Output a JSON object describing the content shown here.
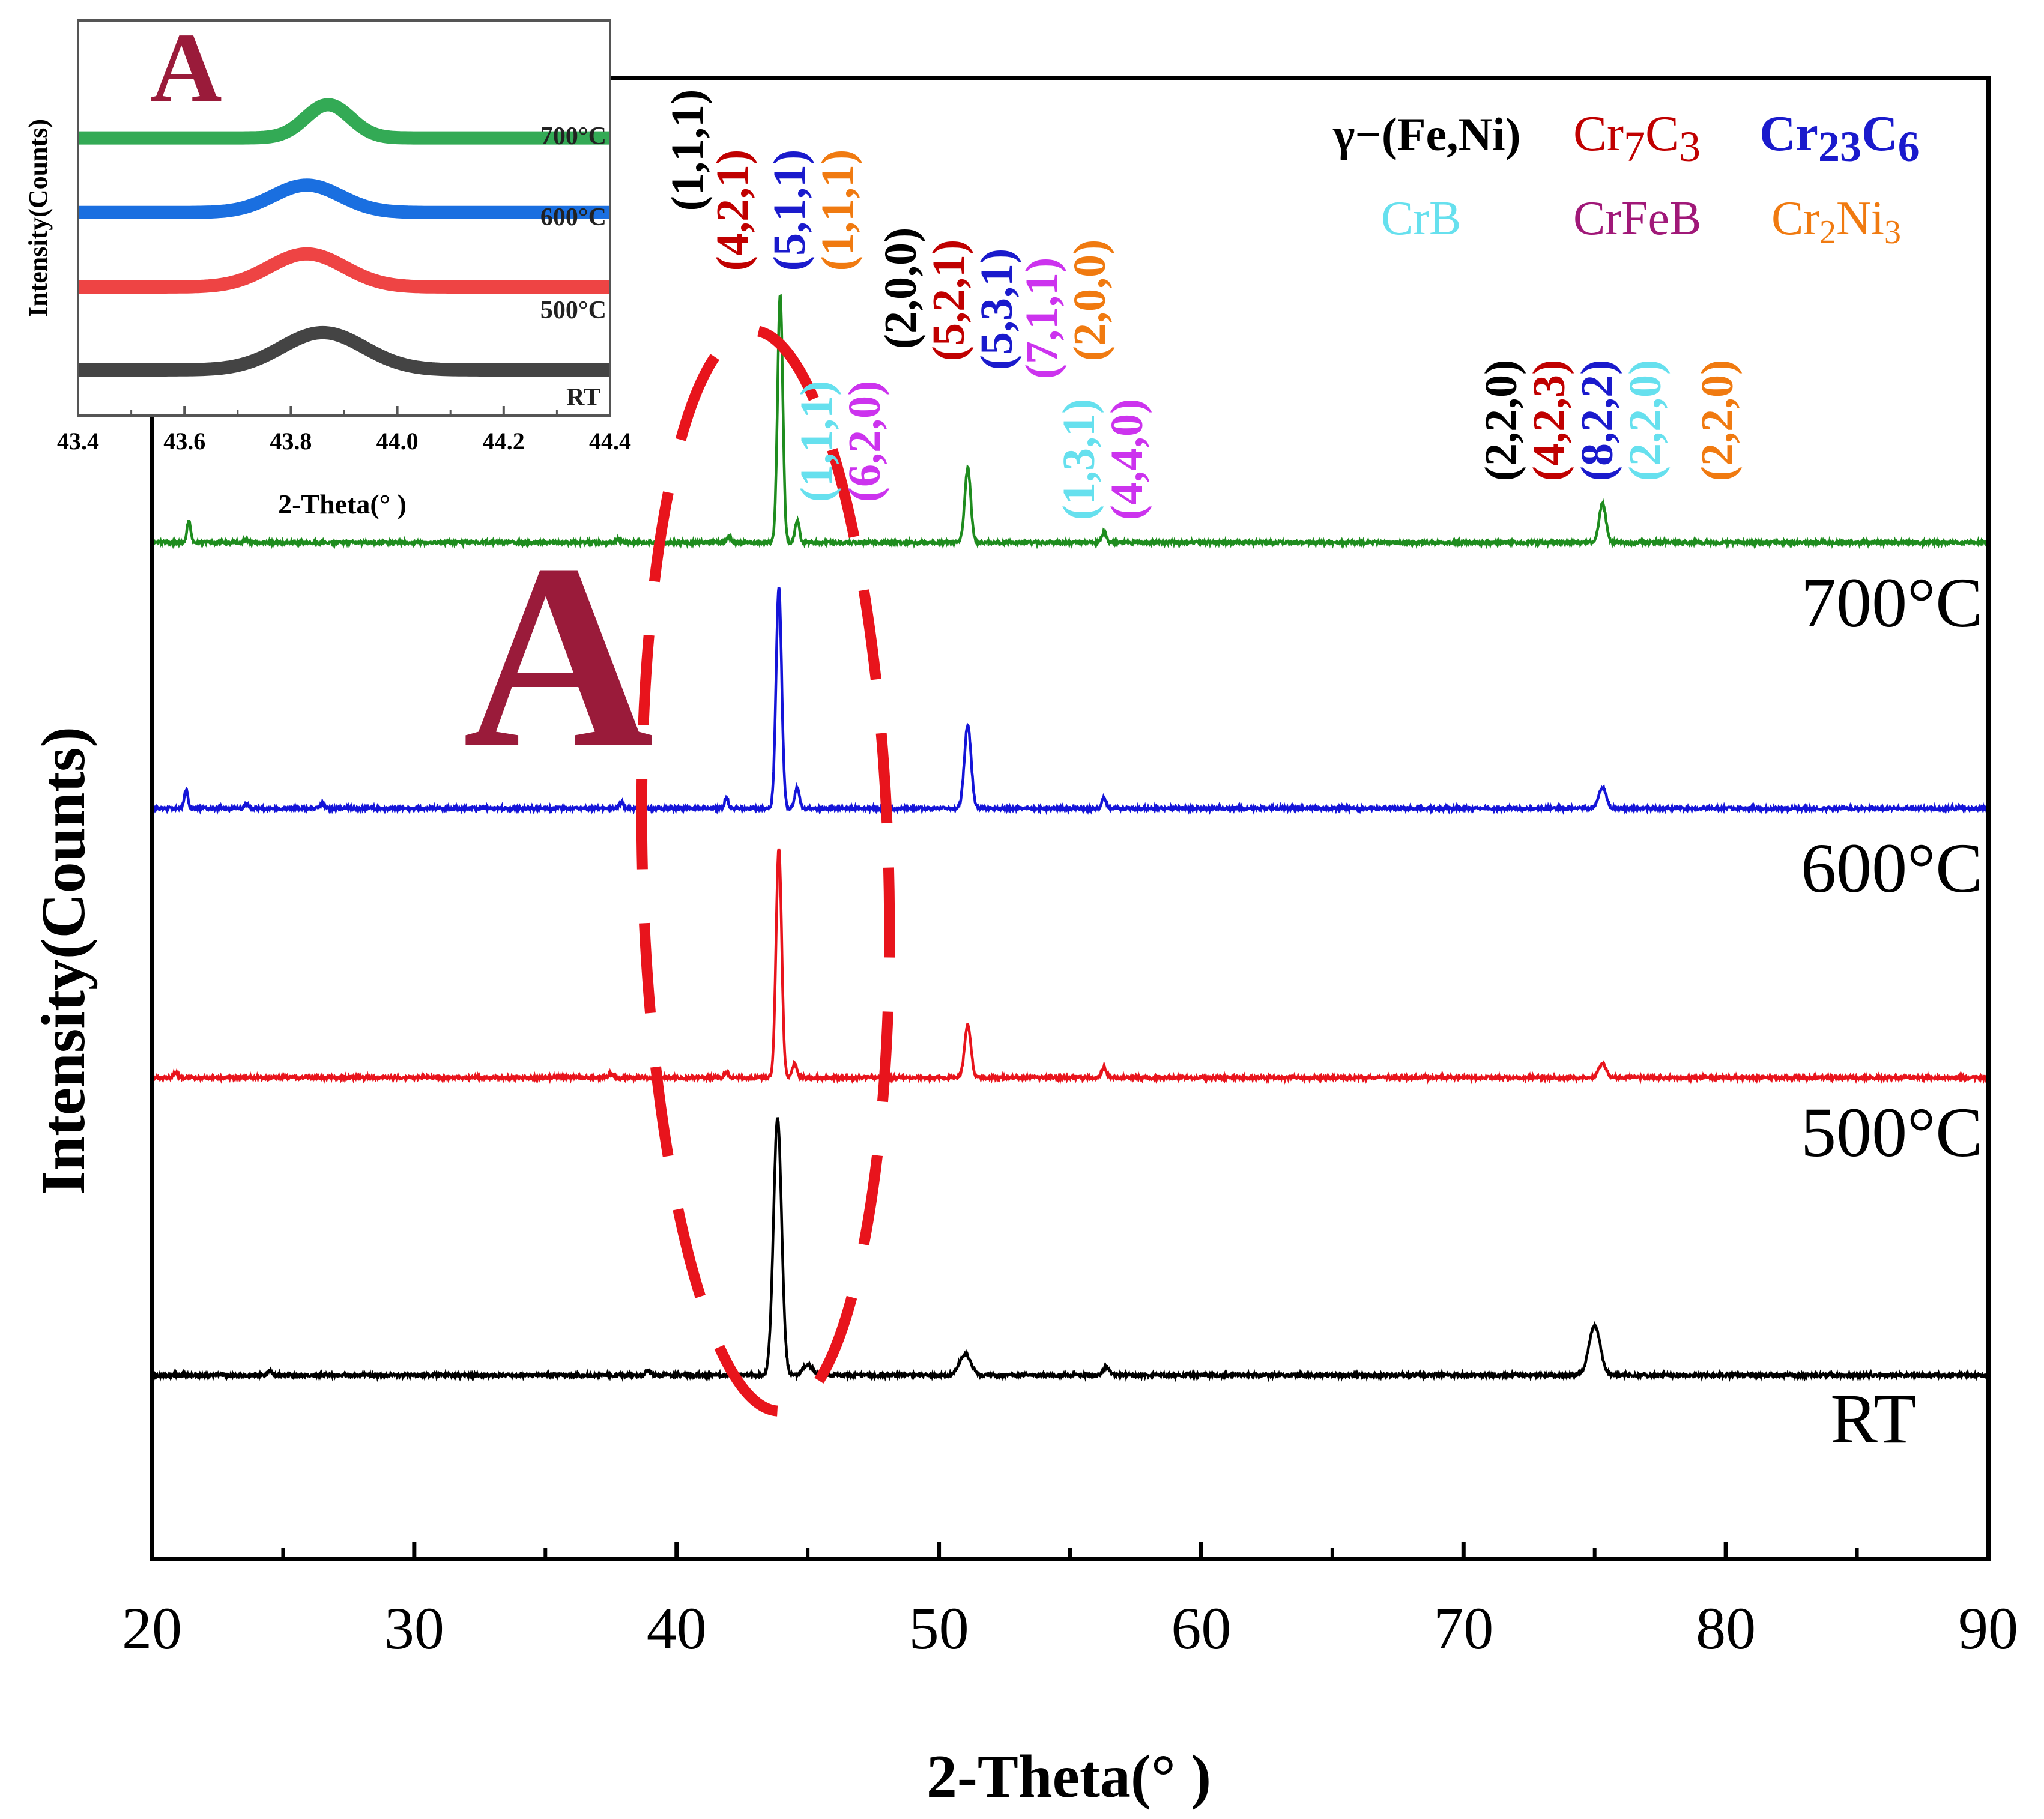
{
  "chart_data": [
    {
      "type": "line",
      "title": "",
      "xlabel": "2-Theta(° )",
      "ylabel": "Intensity(Counts)",
      "xlim": [
        20,
        90
      ],
      "xticks": [
        "20",
        "30",
        "40",
        "50",
        "60",
        "70",
        "80",
        "90"
      ],
      "grid": false,
      "series": [
        {
          "name": "RT",
          "color": "#000000",
          "baseline": 0.0,
          "peaks": [
            [
              24.5,
              0.03,
              0.12
            ],
            [
              38.9,
              0.03,
              0.12
            ],
            [
              43.85,
              1.45,
              0.22
            ],
            [
              45.0,
              0.06,
              0.25
            ],
            [
              51.0,
              0.12,
              0.3
            ],
            [
              56.4,
              0.05,
              0.15
            ],
            [
              75.0,
              0.28,
              0.3
            ]
          ]
        },
        {
          "name": "500°C",
          "color": "#e8141c",
          "baseline": 1.68,
          "peaks": [
            [
              20.9,
              0.03,
              0.12
            ],
            [
              37.5,
              0.02,
              0.12
            ],
            [
              41.9,
              0.03,
              0.1
            ],
            [
              43.9,
              1.3,
              0.15
            ],
            [
              44.5,
              0.08,
              0.12
            ],
            [
              51.1,
              0.3,
              0.17
            ],
            [
              56.3,
              0.06,
              0.12
            ],
            [
              75.3,
              0.08,
              0.2
            ]
          ]
        },
        {
          "name": "600°C",
          "color": "#1414d8",
          "baseline": 3.2,
          "peaks": [
            [
              21.3,
              0.1,
              0.1
            ],
            [
              23.6,
              0.03,
              0.1
            ],
            [
              26.5,
              0.03,
              0.1
            ],
            [
              37.9,
              0.03,
              0.12
            ],
            [
              41.9,
              0.06,
              0.1
            ],
            [
              43.9,
              1.25,
              0.15
            ],
            [
              44.6,
              0.12,
              0.12
            ],
            [
              51.1,
              0.47,
              0.18
            ],
            [
              56.3,
              0.06,
              0.12
            ],
            [
              75.3,
              0.12,
              0.2
            ]
          ]
        },
        {
          "name": "700°C",
          "color": "#1e8c1e",
          "baseline": 4.7,
          "peaks": [
            [
              21.4,
              0.12,
              0.1
            ],
            [
              23.6,
              0.02,
              0.1
            ],
            [
              37.8,
              0.02,
              0.12
            ],
            [
              42.0,
              0.04,
              0.1
            ],
            [
              43.95,
              1.4,
              0.14
            ],
            [
              44.6,
              0.12,
              0.12
            ],
            [
              51.1,
              0.42,
              0.16
            ],
            [
              56.3,
              0.06,
              0.12
            ],
            [
              75.3,
              0.22,
              0.18
            ]
          ]
        }
      ],
      "curve_labels": [
        "700°C",
        "600°C",
        "500°C",
        "RT"
      ],
      "annotation_letter": "A",
      "legend": [
        {
          "name": "γ−(Fe,Ni)",
          "color": "#000000"
        },
        {
          "name": "Cr7C3",
          "base": "Cr",
          "sub1": "7",
          "mid": "C",
          "sub2": "3",
          "color": "#c00000"
        },
        {
          "name": "Cr23C6",
          "base": "Cr",
          "sub1": "23",
          "mid": "C",
          "sub2": "6",
          "color": "#1a1acc"
        },
        {
          "name": "CrB",
          "color": "#66e0ee"
        },
        {
          "name": "CrFeB",
          "color": "#a01878"
        },
        {
          "name": "Cr2Ni3",
          "base": "Cr",
          "sub1": "2",
          "mid": "Ni",
          "sub2": "3",
          "color": "#f07a10"
        }
      ],
      "peak_labels": [
        {
          "text": "(1,1,1)",
          "color": "#000000"
        },
        {
          "text": "(4,2,1)",
          "color": "#c00000"
        },
        {
          "text": "(5,1,1)",
          "color": "#1a1acc"
        },
        {
          "text": "(1,1,1)",
          "color": "#f07a10"
        },
        {
          "text": "(1,1,1)",
          "color": "#66e0ee"
        },
        {
          "text": "(6,2,0)",
          "color": "#cc33ee"
        },
        {
          "text": "(2,0,0)",
          "color": "#000000"
        },
        {
          "text": "(5,2,1)",
          "color": "#c00000"
        },
        {
          "text": "(5,3,1)",
          "color": "#1a1acc"
        },
        {
          "text": "(7,1,1)",
          "color": "#cc33ee"
        },
        {
          "text": "(2,0,0)",
          "color": "#f07a10"
        },
        {
          "text": "(1,3,1)",
          "color": "#66e0ee"
        },
        {
          "text": "(4,4,0)",
          "color": "#cc33ee"
        },
        {
          "text": "(2,2,0)",
          "color": "#000000"
        },
        {
          "text": "(4,2,3)",
          "color": "#c00000"
        },
        {
          "text": "(8,2,2)",
          "color": "#1a1acc"
        },
        {
          "text": "(2,2,0)",
          "color": "#66e0ee"
        },
        {
          "text": "(2,2,0)",
          "color": "#f07a10"
        }
      ]
    },
    {
      "type": "line",
      "title": "A",
      "xlabel": "2-Theta(° )",
      "ylabel": "Intensity(Counts)",
      "xlim": [
        43.4,
        44.4
      ],
      "xticks": [
        "43.4",
        "43.6",
        "43.8",
        "44.0",
        "44.2",
        "44.4"
      ],
      "grid": false,
      "series": [
        {
          "name": "RT",
          "color": "#444444",
          "baseline": 0.0,
          "center": 43.86,
          "height": 0.45,
          "width": 0.11
        },
        {
          "name": "500°C",
          "color": "#ee4444",
          "baseline": 1.0,
          "center": 43.83,
          "height": 0.4,
          "width": 0.1
        },
        {
          "name": "600°C",
          "color": "#1a6fe0",
          "baseline": 1.9,
          "center": 43.83,
          "height": 0.33,
          "width": 0.09
        },
        {
          "name": "700°C",
          "color": "#33aa55",
          "baseline": 2.8,
          "center": 43.87,
          "height": 0.4,
          "width": 0.06
        }
      ],
      "curve_labels": [
        "700°C",
        "600°C",
        "500°C",
        "RT"
      ]
    }
  ]
}
